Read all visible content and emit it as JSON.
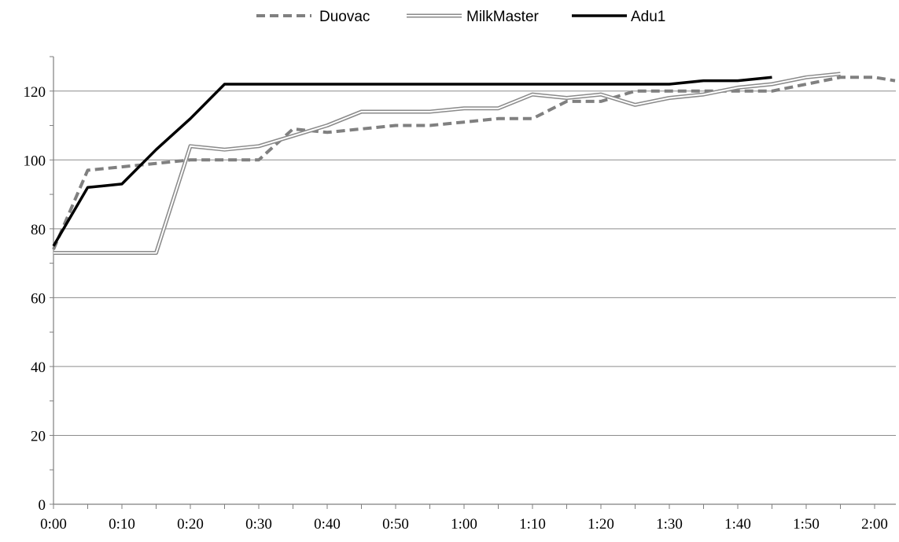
{
  "chart_data": {
    "type": "line",
    "title": "",
    "xlabel": "",
    "ylabel": "",
    "x": [
      "0:00",
      "0:05",
      "0:10",
      "0:15",
      "0:20",
      "0:25",
      "0:30",
      "0:35",
      "0:40",
      "0:45",
      "0:50",
      "0:55",
      "1:00",
      "1:05",
      "1:10",
      "1:15",
      "1:20",
      "1:25",
      "1:30",
      "1:35",
      "1:40",
      "1:45",
      "1:50",
      "1:55",
      "2:00",
      "2:02"
    ],
    "x_tick_labels": [
      "0:00",
      "0:10",
      "0:20",
      "0:30",
      "0:40",
      "0:50",
      "1:00",
      "1:10",
      "1:20",
      "1:30",
      "1:40",
      "1:50",
      "2:00"
    ],
    "y_tick_labels": [
      "0",
      "20",
      "40",
      "60",
      "80",
      "100",
      "120"
    ],
    "ylim": [
      0,
      130
    ],
    "y_gridlines": true,
    "legend_position": "top",
    "series": [
      {
        "name": "Duovac",
        "style": "dashed",
        "color": "#808080",
        "values": [
          74,
          97,
          98,
          99,
          100,
          100,
          100,
          109,
          108,
          109,
          110,
          110,
          111,
          112,
          112,
          117,
          117,
          120,
          120,
          120,
          120,
          120,
          122,
          124,
          124,
          123
        ]
      },
      {
        "name": "MilkMaster",
        "style": "double",
        "color": "#999999",
        "values": [
          73,
          73,
          73,
          73,
          104,
          103,
          104,
          107,
          110,
          114,
          114,
          114,
          115,
          115,
          119,
          118,
          119,
          116,
          118,
          119,
          121,
          122,
          124,
          125,
          null,
          null
        ]
      },
      {
        "name": "Adu1",
        "style": "solid",
        "color": "#000000",
        "values": [
          75,
          92,
          93,
          103,
          112,
          122,
          122,
          122,
          122,
          122,
          122,
          122,
          122,
          122,
          122,
          122,
          122,
          122,
          122,
          123,
          123,
          124,
          null,
          null,
          null,
          null
        ]
      }
    ]
  }
}
